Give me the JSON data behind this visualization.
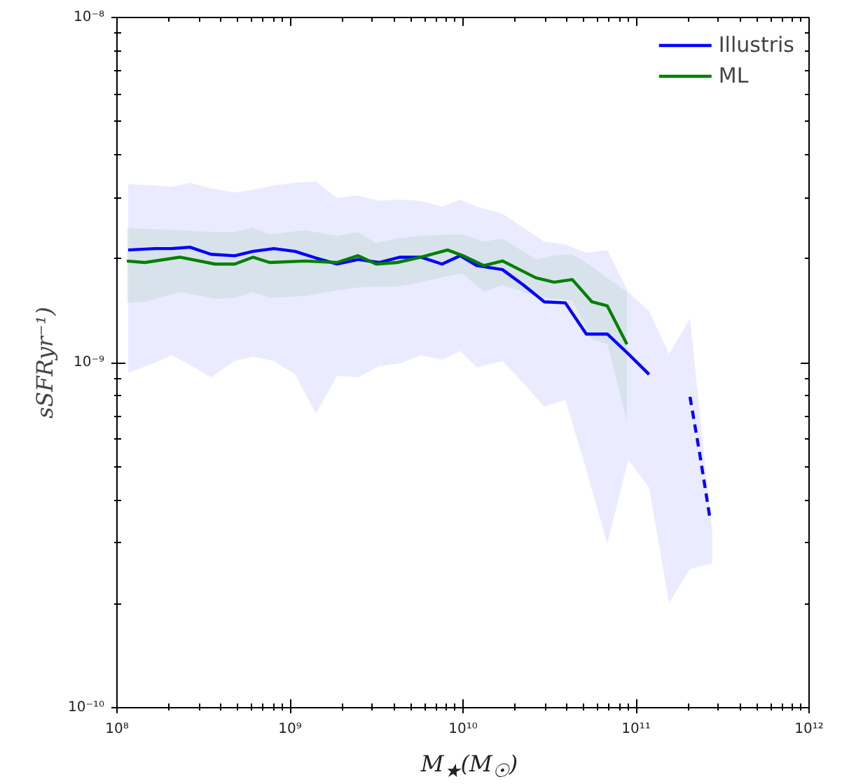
{
  "chart_data": {
    "type": "line",
    "xlabel": "M$_{★}$(M$_{☉}$)",
    "ylabel": "sSFRyr⁻¹)",
    "log": "xy",
    "grid": false,
    "legend": "top right",
    "line_style": "solid",
    "marker": "none",
    "xlim": [
      100000000.0,
      1000000000000.0
    ],
    "ylim": [
      1e-10,
      1e-08
    ],
    "xticks": [
      {
        "value": 100000000.0,
        "label": "10⁸"
      },
      {
        "value": 1000000000.0,
        "label": "10⁹"
      },
      {
        "value": 10000000000.0,
        "label": "10¹⁰"
      },
      {
        "value": 100000000000.0,
        "label": "10¹¹"
      },
      {
        "value": 1000000000000.0,
        "label": "10¹²"
      }
    ],
    "yticks": [
      {
        "value": 1e-10,
        "label": "10⁻¹⁰"
      },
      {
        "value": 1e-09,
        "label": "10⁻⁹"
      },
      {
        "value": 1e-08,
        "label": "10⁻⁸"
      }
    ],
    "series": [
      {
        "name": "Illustris",
        "color": "#0000ff",
        "x": [
          116000000.0,
          166000000.0,
          207000000.0,
          264000000.0,
          349000000.0,
          479000000.0,
          610000000.0,
          807000000.0,
          1070000000.0,
          1410000000.0,
          1870000000.0,
          2470000000.0,
          3270000000.0,
          4320000000.0,
          5710000000.0,
          7570000000.0,
          9640000000.0,
          12000000000.0,
          16900000000.0,
          22300000000.0,
          29500000000.0,
          39000000000.0,
          51600000000.0,
          68200000000.0,
          90200000000.0,
          119000000000.0,
          155000000000.0,
          205000000000.0,
          276000000000.0
        ],
        "values": [
          2.12e-09,
          2.14e-09,
          2.14e-09,
          2.16e-09,
          2.06e-09,
          2.04e-09,
          2.1e-09,
          2.14e-09,
          2.1e-09,
          2.01e-09,
          1.93e-09,
          1.99e-09,
          1.95e-09,
          2.02e-09,
          2.02e-09,
          1.93e-09,
          2.04e-09,
          1.91e-09,
          1.86e-09,
          1.68e-09,
          1.5e-09,
          1.49e-09,
          1.21e-09,
          1.21e-09,
          1.06e-09,
          9.24e-10,
          null,
          null,
          null
        ],
        "upper": [
          3.29e-09,
          3.26e-09,
          3.23e-09,
          3.32e-09,
          3.2e-09,
          3.11e-09,
          3.17e-09,
          3.26e-09,
          3.32e-09,
          3.35e-09,
          3e-09,
          3.05e-09,
          2.94e-09,
          2.97e-09,
          2.94e-09,
          2.83e-09,
          2.97e-09,
          2.83e-09,
          2.7e-09,
          2.46e-09,
          2.24e-09,
          2.2e-09,
          2.08e-09,
          2.12e-09,
          1.6e-09,
          1.41e-09,
          1.06e-09,
          1.34e-09,
          3.21e-10
        ],
        "lower": [
          9.33e-10,
          1e-09,
          1.05e-09,
          9.86e-10,
          9.06e-10,
          1.01e-09,
          1.04e-09,
          1.01e-09,
          9.24e-10,
          7.11e-10,
          9.15e-10,
          9.06e-10,
          9.77e-10,
          9.95e-10,
          1.05e-09,
          1.02e-09,
          1.08e-09,
          9.68e-10,
          1.01e-09,
          8.73e-10,
          7.45e-10,
          7.8e-10,
          4.9e-10,
          2.98e-10,
          5.23e-10,
          4.34e-10,
          2.01e-10,
          2.52e-10,
          2.62e-10
        ]
      },
      {
        "color": "#0000ff",
        "line_style": "dashed",
        "x": [
          205000000000.0,
          233000000000.0,
          266000000000.0
        ],
        "values": [
          7.96e-10,
          5.47e-10,
          3.6e-10
        ]
      },
      {
        "name": "ML",
        "color": "#008000",
        "x": [
          114000000.0,
          145000000.0,
          231000000.0,
          369000000.0,
          479000000.0,
          610000000.0,
          763000000.0,
          1220000000.0,
          1870000000.0,
          2470000000.0,
          3150000000.0,
          4160000000.0,
          5710000000.0,
          8140000000.0,
          10000000000.0,
          13200000000.0,
          16900000000.0,
          26400000000.0,
          33600000000.0,
          42800000000.0,
          55600000000.0,
          68200000000.0,
          88600000000.0
        ],
        "values": [
          1.97e-09,
          1.95e-09,
          2.02e-09,
          1.93e-09,
          1.93e-09,
          2.02e-09,
          1.95e-09,
          1.97e-09,
          1.95e-09,
          2.04e-09,
          1.93e-09,
          1.95e-09,
          2.02e-09,
          2.12e-09,
          2.04e-09,
          1.91e-09,
          1.97e-09,
          1.76e-09,
          1.71e-09,
          1.74e-09,
          1.5e-09,
          1.46e-09,
          1.13e-09
        ],
        "upper": [
          2.46e-09,
          2.44e-09,
          2.42e-09,
          2.39e-09,
          2.39e-09,
          2.46e-09,
          2.35e-09,
          2.42e-09,
          2.33e-09,
          2.39e-09,
          2.22e-09,
          2.29e-09,
          2.33e-09,
          2.35e-09,
          2.35e-09,
          2.24e-09,
          2.29e-09,
          1.99e-09,
          2.04e-09,
          2.06e-09,
          1.9e-09,
          1.76e-09,
          1.6e-09
        ],
        "lower": [
          1.49e-09,
          1.5e-09,
          1.6e-09,
          1.53e-09,
          1.54e-09,
          1.6e-09,
          1.54e-09,
          1.56e-09,
          1.62e-09,
          1.65e-09,
          1.66e-09,
          1.66e-09,
          1.71e-09,
          1.78e-09,
          1.81e-09,
          1.6e-09,
          1.68e-09,
          1.56e-09,
          1.53e-09,
          1.51e-09,
          1.17e-09,
          1.13e-09,
          6.79e-10
        ]
      }
    ]
  }
}
